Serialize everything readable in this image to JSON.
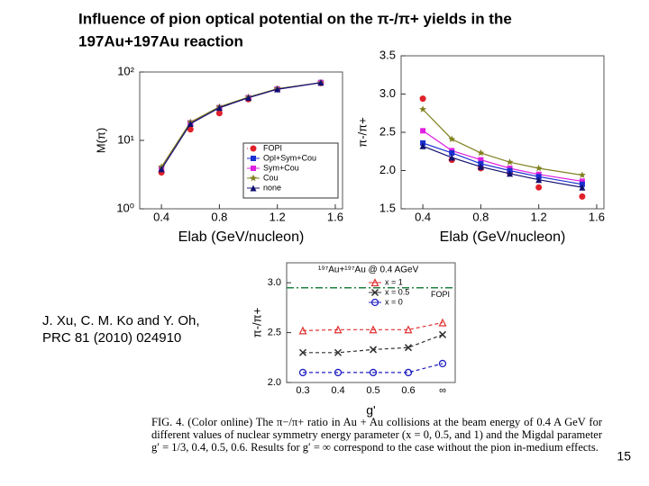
{
  "title": [
    "Influence of pion optical potential on the π-/π+ yields in the",
    "197Au+197Au reaction"
  ],
  "citation": [
    "J. Xu, C. M. Ko and Y. Oh,",
    "PRC 81 (2010) 024910"
  ],
  "caption": "FIG. 4. (Color online) The π−/π+ ratio in Au + Au collisions at the beam energy of 0.4 A GeV for different values of nuclear symmetry energy parameter (x = 0, 0.5, and 1) and the Migdal parameter g′ = 1/3, 0.4, 0.5, 0.6. Results for g′ = ∞ correspond to the case without the pion in-medium effects.",
  "page_number": "15",
  "chart_data": [
    {
      "type": "line",
      "xlabel": "Elab (GeV/nucleon)",
      "ylabel": "M(π)",
      "log_y": true,
      "legend": "lower right",
      "x": [
        0.4,
        0.6,
        0.8,
        1.0,
        1.2,
        1.5
      ],
      "xlim": [
        0.25,
        1.65
      ],
      "xticks": [
        0.4,
        0.8,
        1.2,
        1.6
      ],
      "ylim": [
        1,
        100
      ],
      "yticks": [
        {
          "value": 1,
          "label": "10⁰"
        },
        {
          "value": 10,
          "label": "10¹"
        },
        {
          "value": 100,
          "label": "10²"
        }
      ],
      "series": [
        {
          "name": "FOPI",
          "color": "#e0202a",
          "marker": "circle",
          "line": false,
          "values": [
            3.4,
            14.5,
            25,
            40,
            56,
            69
          ]
        },
        {
          "name": "Opl+Sym+Cou",
          "color": "#1a2fd0",
          "marker": "square",
          "line": true,
          "values": [
            3.9,
            18,
            30,
            42,
            56,
            70
          ]
        },
        {
          "name": "Sym+Cou",
          "color": "#e020e0",
          "marker": "square",
          "line": true,
          "values": [
            3.9,
            18,
            30,
            42,
            56,
            70
          ]
        },
        {
          "name": "Cou",
          "color": "#808020",
          "marker": "star",
          "line": true,
          "values": [
            4.1,
            18.5,
            31,
            43,
            57,
            70
          ]
        },
        {
          "name": "none",
          "color": "#101070",
          "marker": "triangle",
          "line": true,
          "values": [
            3.8,
            17.5,
            30,
            42,
            56,
            70
          ]
        }
      ]
    },
    {
      "type": "line",
      "xlabel": "Elab (GeV/nucleon)",
      "ylabel": "π-/π+",
      "log_y": false,
      "x": [
        0.4,
        0.6,
        0.8,
        1.0,
        1.2,
        1.5
      ],
      "xlim": [
        0.25,
        1.65
      ],
      "xticks": [
        0.4,
        0.8,
        1.2,
        1.6
      ],
      "ylim": [
        1.5,
        3.5
      ],
      "yticks": [
        1.5,
        {
          "value": 2,
          "label": "2.0"
        },
        2.5,
        {
          "value": 3,
          "label": "3.0"
        },
        3.5
      ],
      "series": [
        {
          "color": "#e0202a",
          "marker": "circle",
          "line": false,
          "values": [
            2.94,
            2.14,
            2.03,
            1.97,
            1.78,
            1.66
          ]
        },
        {
          "color": "#808020",
          "marker": "star",
          "line": true,
          "values": [
            2.8,
            2.41,
            2.23,
            2.11,
            2.03,
            1.94
          ]
        },
        {
          "color": "#e020e0",
          "marker": "square",
          "line": true,
          "values": [
            2.52,
            2.26,
            2.14,
            2.03,
            1.95,
            1.86
          ]
        },
        {
          "color": "#1a2fd0",
          "marker": "square",
          "line": true,
          "values": [
            2.36,
            2.23,
            2.09,
            2.0,
            1.92,
            1.82
          ]
        },
        {
          "color": "#101070",
          "marker": "triangle",
          "line": true,
          "values": [
            2.32,
            2.17,
            2.05,
            1.96,
            1.88,
            1.78
          ]
        }
      ]
    },
    {
      "type": "line",
      "title": "¹⁹⁷Au+¹⁹⁷Au @ 0.4 AGeV",
      "xlabel": "g'",
      "ylabel": "π-/π+",
      "legend": "upper right",
      "categories": [
        "0.3",
        "0.4",
        "0.5",
        "0.6",
        "∞"
      ],
      "ylim": [
        2.0,
        3.2
      ],
      "yticks": [
        {
          "value": 2,
          "label": "2.0"
        },
        2.5,
        {
          "value": 3,
          "label": "3.0"
        }
      ],
      "reference": {
        "name": "FOPI",
        "value": 2.95,
        "color": "#208040"
      },
      "series": [
        {
          "name": "x = 1",
          "color": "#e03030",
          "marker": "triangle-open",
          "line": true,
          "values": [
            2.52,
            2.53,
            2.53,
            2.53,
            2.6
          ]
        },
        {
          "name": "x = 0.5",
          "color": "#303030",
          "marker": "x",
          "line": true,
          "values": [
            2.3,
            2.3,
            2.33,
            2.35,
            2.48
          ]
        },
        {
          "name": "x = 0",
          "color": "#2020c0",
          "marker": "circle-open",
          "line": true,
          "values": [
            2.1,
            2.1,
            2.1,
            2.1,
            2.19
          ]
        }
      ]
    }
  ]
}
